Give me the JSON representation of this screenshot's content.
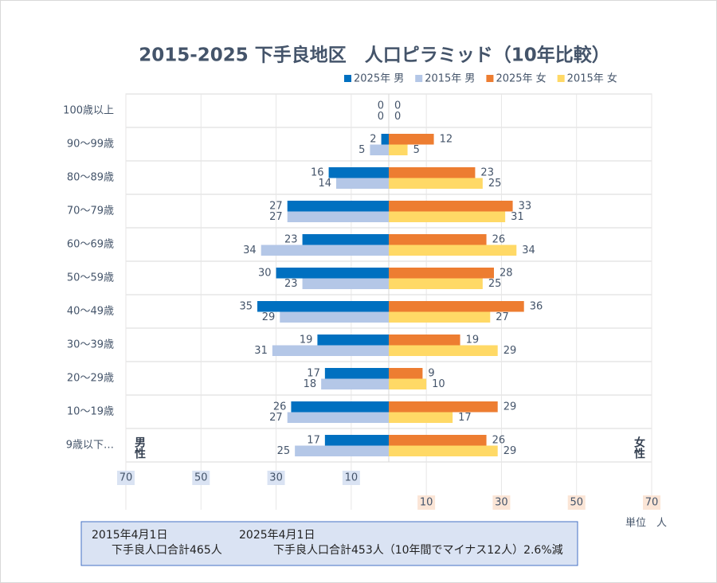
{
  "chart_data": {
    "type": "pyramid",
    "title": "2015-2025 下手良地区　人口ピラミッド（10年比較）",
    "categories": [
      "100歳以上",
      "90～99歳",
      "80～89歳",
      "70～79歳",
      "60～69歳",
      "50～59歳",
      "40～49歳",
      "30～39歳",
      "20～29歳",
      "10～19歳",
      "9歳以下…"
    ],
    "series": [
      {
        "name": "2025年 男",
        "side": "left",
        "color": "#0070c0",
        "values": [
          0,
          2,
          16,
          27,
          23,
          30,
          35,
          19,
          17,
          26,
          17
        ]
      },
      {
        "name": "2015年 男",
        "side": "left",
        "color": "#b4c7e7",
        "values": [
          0,
          5,
          14,
          27,
          34,
          23,
          29,
          31,
          18,
          27,
          25
        ]
      },
      {
        "name": "2025年 女",
        "side": "right",
        "color": "#ed7d31",
        "values": [
          0,
          12,
          23,
          33,
          26,
          28,
          36,
          19,
          9,
          29,
          26
        ]
      },
      {
        "name": "2015年 女",
        "side": "right",
        "color": "#ffd966",
        "values": [
          0,
          5,
          25,
          31,
          34,
          25,
          27,
          29,
          10,
          17,
          29
        ]
      }
    ],
    "left_axis": {
      "label": "男性",
      "xlim": [
        0,
        70
      ],
      "xticks": [
        70,
        50,
        30,
        10
      ],
      "color": "#dae3f3"
    },
    "right_axis": {
      "label": "女性",
      "xlim": [
        0,
        70
      ],
      "xticks": [
        10,
        30,
        50,
        70
      ],
      "color": "#fbe5d6"
    },
    "unit_label": "単位　人",
    "grid": true,
    "notes": [
      {
        "date": "2015年4月1日",
        "text": "下手良人口合計465人"
      },
      {
        "date": "2025年4月1日",
        "text": "下手良人口合計453人（10年間でマイナス12人）2.6%減"
      }
    ]
  }
}
